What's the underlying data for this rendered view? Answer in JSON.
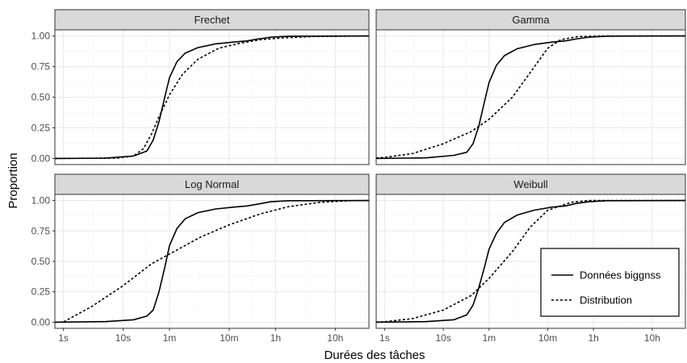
{
  "chart_data": {
    "type": "line",
    "xlabel": "Durées des tâches",
    "ylabel": "Proportion",
    "x_scale": "log",
    "x_unit": "seconds",
    "xlim": [
      0.72,
      132000
    ],
    "ylim": [
      -0.05,
      1.05
    ],
    "x_ticks": [
      {
        "label": "1s",
        "value": 1
      },
      {
        "label": "10s",
        "value": 10
      },
      {
        "label": "1m",
        "value": 60
      },
      {
        "label": "10m",
        "value": 600
      },
      {
        "label": "1h",
        "value": 3600
      },
      {
        "label": "10h",
        "value": 36000
      }
    ],
    "y_ticks": [
      {
        "label": "0.00",
        "value": 0
      },
      {
        "label": "0.25",
        "value": 0.25
      },
      {
        "label": "0.50",
        "value": 0.5
      },
      {
        "label": "0.75",
        "value": 0.75
      },
      {
        "label": "1.00",
        "value": 1
      }
    ],
    "grid": true,
    "legend": {
      "position": "bottom-right",
      "entries": [
        {
          "label": "Données biggnss",
          "linetype": "solid"
        },
        {
          "label": "Distribution",
          "linetype": "dashed"
        }
      ]
    },
    "colors": {
      "line": "#000000",
      "strip_bg": "#d9d9d9",
      "grid_major": "#ebebeb",
      "grid_minor": "#f5f5f5"
    },
    "panels": [
      {
        "title": "Frechet",
        "series": [
          {
            "name": "Données biggnss",
            "linetype": "solid",
            "points": [
              [
                0.72,
                0
              ],
              [
                5,
                0.002
              ],
              [
                15,
                0.02
              ],
              [
                25,
                0.06
              ],
              [
                32,
                0.15
              ],
              [
                40,
                0.3
              ],
              [
                50,
                0.5
              ],
              [
                60,
                0.66
              ],
              [
                80,
                0.79
              ],
              [
                110,
                0.86
              ],
              [
                180,
                0.905
              ],
              [
                350,
                0.935
              ],
              [
                700,
                0.95
              ],
              [
                1200,
                0.96
              ],
              [
                1800,
                0.975
              ],
              [
                3000,
                0.99
              ],
              [
                6000,
                0.998
              ],
              [
                132000,
                1
              ]
            ]
          },
          {
            "name": "Distribution",
            "linetype": "dashed",
            "points": [
              [
                0.72,
                0
              ],
              [
                8,
                0.003
              ],
              [
                15,
                0.02
              ],
              [
                22,
                0.08
              ],
              [
                30,
                0.2
              ],
              [
                40,
                0.34
              ],
              [
                60,
                0.52
              ],
              [
                100,
                0.69
              ],
              [
                180,
                0.81
              ],
              [
                400,
                0.9
              ],
              [
                900,
                0.94
              ],
              [
                2000,
                0.97
              ],
              [
                5000,
                0.985
              ],
              [
                15000,
                0.995
              ],
              [
                132000,
                1
              ]
            ]
          }
        ]
      },
      {
        "title": "Gamma",
        "series": [
          {
            "name": "Données biggnss",
            "linetype": "solid",
            "points": [
              [
                0.72,
                0
              ],
              [
                5,
                0.005
              ],
              [
                15,
                0.025
              ],
              [
                25,
                0.05
              ],
              [
                32,
                0.12
              ],
              [
                40,
                0.26
              ],
              [
                50,
                0.46
              ],
              [
                60,
                0.62
              ],
              [
                80,
                0.76
              ],
              [
                110,
                0.84
              ],
              [
                180,
                0.895
              ],
              [
                350,
                0.93
              ],
              [
                700,
                0.95
              ],
              [
                1200,
                0.96
              ],
              [
                1800,
                0.975
              ],
              [
                3000,
                0.99
              ],
              [
                6000,
                0.998
              ],
              [
                132000,
                1
              ]
            ]
          },
          {
            "name": "Distribution",
            "linetype": "dashed",
            "points": [
              [
                0.72,
                0.005
              ],
              [
                1,
                0.008
              ],
              [
                3,
                0.04
              ],
              [
                10,
                0.12
              ],
              [
                30,
                0.22
              ],
              [
                60,
                0.32
              ],
              [
                150,
                0.5
              ],
              [
                300,
                0.7
              ],
              [
                600,
                0.9
              ],
              [
                1000,
                0.97
              ],
              [
                2000,
                0.995
              ],
              [
                5000,
                1
              ],
              [
                132000,
                1
              ]
            ]
          }
        ]
      },
      {
        "title": "Log Normal",
        "series": [
          {
            "name": "Données biggnss",
            "linetype": "solid",
            "points": [
              [
                0.72,
                0
              ],
              [
                5,
                0.005
              ],
              [
                15,
                0.02
              ],
              [
                25,
                0.05
              ],
              [
                32,
                0.1
              ],
              [
                40,
                0.25
              ],
              [
                50,
                0.45
              ],
              [
                60,
                0.63
              ],
              [
                80,
                0.77
              ],
              [
                110,
                0.85
              ],
              [
                180,
                0.9
              ],
              [
                350,
                0.93
              ],
              [
                700,
                0.945
              ],
              [
                1200,
                0.955
              ],
              [
                1800,
                0.97
              ],
              [
                3000,
                0.99
              ],
              [
                6000,
                0.998
              ],
              [
                132000,
                1
              ]
            ]
          },
          {
            "name": "Distribution",
            "linetype": "dashed",
            "points": [
              [
                0.72,
                0
              ],
              [
                1,
                0.002
              ],
              [
                3,
                0.13
              ],
              [
                10,
                0.3
              ],
              [
                30,
                0.48
              ],
              [
                60,
                0.56
              ],
              [
                200,
                0.7
              ],
              [
                600,
                0.8
              ],
              [
                2000,
                0.89
              ],
              [
                6000,
                0.95
              ],
              [
                20000,
                0.985
              ],
              [
                60000,
                0.998
              ],
              [
                132000,
                1
              ]
            ]
          }
        ]
      },
      {
        "title": "Weibull",
        "series": [
          {
            "name": "Données biggnss",
            "linetype": "solid",
            "points": [
              [
                0.72,
                0
              ],
              [
                5,
                0.005
              ],
              [
                15,
                0.02
              ],
              [
                25,
                0.06
              ],
              [
                32,
                0.14
              ],
              [
                40,
                0.28
              ],
              [
                50,
                0.45
              ],
              [
                60,
                0.6
              ],
              [
                80,
                0.73
              ],
              [
                110,
                0.82
              ],
              [
                180,
                0.88
              ],
              [
                350,
                0.92
              ],
              [
                700,
                0.945
              ],
              [
                1200,
                0.955
              ],
              [
                1800,
                0.975
              ],
              [
                3000,
                0.99
              ],
              [
                6000,
                0.998
              ],
              [
                132000,
                1
              ]
            ]
          },
          {
            "name": "Distribution",
            "linetype": "dashed",
            "points": [
              [
                0.72,
                0.002
              ],
              [
                1,
                0.004
              ],
              [
                3,
                0.03
              ],
              [
                10,
                0.1
              ],
              [
                30,
                0.22
              ],
              [
                60,
                0.36
              ],
              [
                150,
                0.58
              ],
              [
                300,
                0.78
              ],
              [
                600,
                0.92
              ],
              [
                1500,
                0.985
              ],
              [
                3000,
                1
              ],
              [
                132000,
                1
              ]
            ]
          }
        ]
      }
    ]
  }
}
